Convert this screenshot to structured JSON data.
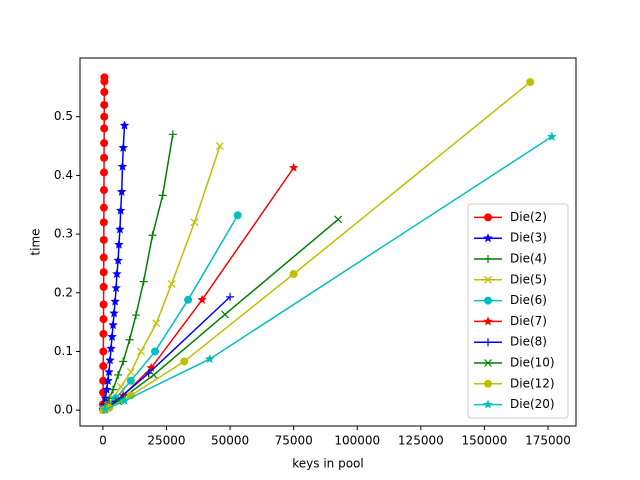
{
  "chart_data": {
    "type": "line",
    "xlabel": "keys in pool",
    "ylabel": "time",
    "xlim": [
      -9000,
      186000
    ],
    "ylim": [
      -0.027,
      0.6
    ],
    "xticks": [
      0,
      25000,
      50000,
      75000,
      100000,
      125000,
      150000,
      175000
    ],
    "yticks": [
      {
        "value": 0,
        "label": "0.0"
      },
      0.1,
      0.2,
      0.3,
      0.4,
      0.5
    ],
    "legend": "lower right",
    "series": [
      {
        "name": "Die(2)",
        "color": "#ff0000",
        "marker": "o",
        "x": [
          10,
          40,
          80,
          120,
          150,
          180,
          210,
          240,
          270,
          300,
          320,
          340,
          360,
          380,
          400,
          420,
          440,
          460,
          480,
          500,
          520,
          540,
          560,
          590,
          600
        ],
        "values": [
          0.001,
          0.01,
          0.03,
          0.05,
          0.075,
          0.1,
          0.13,
          0.155,
          0.18,
          0.21,
          0.235,
          0.26,
          0.29,
          0.32,
          0.345,
          0.375,
          0.405,
          0.43,
          0.455,
          0.48,
          0.5,
          0.52,
          0.542,
          0.56,
          0.567
        ]
      },
      {
        "name": "Die(3)",
        "color": "#0000ff",
        "marker": "*",
        "x": [
          100,
          500,
          1000,
          1500,
          2000,
          2400,
          2800,
          3200,
          3600,
          4000,
          4400,
          4800,
          5200,
          5500,
          6000,
          6300,
          6700,
          7000,
          7400,
          7700,
          8000,
          8500
        ],
        "values": [
          0.001,
          0.008,
          0.02,
          0.035,
          0.05,
          0.065,
          0.085,
          0.105,
          0.125,
          0.145,
          0.165,
          0.185,
          0.208,
          0.232,
          0.255,
          0.282,
          0.308,
          0.34,
          0.372,
          0.415,
          0.447,
          0.485
        ]
      },
      {
        "name": "Die(4)",
        "color": "#008000",
        "marker": "+",
        "x": [
          300,
          1200,
          2500,
          4000,
          6000,
          8000,
          10500,
          13000,
          16000,
          19500,
          23500,
          27500
        ],
        "values": [
          0.001,
          0.008,
          0.02,
          0.035,
          0.06,
          0.083,
          0.12,
          0.162,
          0.219,
          0.298,
          0.366,
          0.47
        ]
      },
      {
        "name": "Die(5)",
        "color": "#bfbf00",
        "marker": "x",
        "x": [
          500,
          2000,
          4000,
          7000,
          11000,
          15000,
          21000,
          27000,
          36000,
          46000
        ],
        "values": [
          0.002,
          0.008,
          0.02,
          0.04,
          0.065,
          0.1,
          0.148,
          0.215,
          0.32,
          0.45
        ]
      },
      {
        "name": "Die(6)",
        "color": "#00bfbf",
        "marker": "o",
        "x": [
          200,
          1500,
          5000,
          11000,
          20500,
          33500,
          53000
        ],
        "values": [
          0.001,
          0.005,
          0.02,
          0.05,
          0.1,
          0.188,
          0.332
        ]
      },
      {
        "name": "Die(7)",
        "color": "#ff0000",
        "marker": "*",
        "x": [
          300,
          2500,
          8000,
          19000,
          39000,
          75000
        ],
        "values": [
          0.001,
          0.007,
          0.025,
          0.072,
          0.188,
          0.413
        ]
      },
      {
        "name": "Die(8)",
        "color": "#0000ff",
        "marker": "+",
        "x": [
          600,
          5000,
          18000,
          50000
        ],
        "values": [
          0.001,
          0.015,
          0.063,
          0.193
        ]
      },
      {
        "name": "Die(10)",
        "color": "#008000",
        "marker": "x",
        "x": [
          700,
          6000,
          20000,
          48000,
          92500
        ],
        "values": [
          0.001,
          0.015,
          0.06,
          0.163,
          0.325
        ]
      },
      {
        "name": "Die(12)",
        "color": "#bfbf00",
        "marker": "o",
        "x": [
          200,
          2500,
          11000,
          32000,
          75000,
          168000
        ],
        "values": [
          0,
          0.004,
          0.025,
          0.083,
          0.232,
          0.559
        ]
      },
      {
        "name": "Die(20)",
        "color": "#00bfbf",
        "marker": "*",
        "x": [
          900,
          8500,
          42000,
          176500
        ],
        "values": [
          0.001,
          0.016,
          0.087,
          0.466
        ]
      }
    ]
  }
}
